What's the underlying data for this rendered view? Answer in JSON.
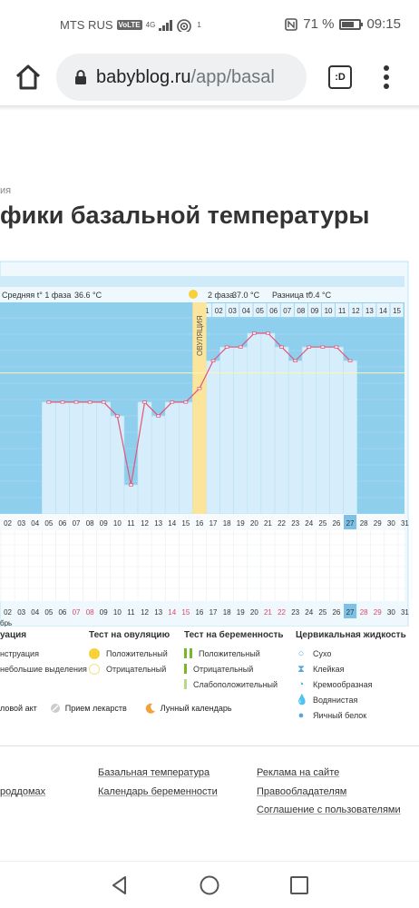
{
  "status_bar": {
    "carrier": "MTS RUS",
    "volte": "VoLTE",
    "network": "4G",
    "signal_sub": "1",
    "battery": "71 %",
    "battery_level": 0.71,
    "time": "09:15"
  },
  "browser": {
    "url_host": "babyblog.ru",
    "url_path": "/app/basal",
    "tab_label": ":D"
  },
  "page": {
    "breadcrumb": "ия",
    "title": "фики базальной температуры"
  },
  "chart_data": {
    "type": "line",
    "phase1_label": "Средняя t° 1 фаза",
    "phase1_value": "36.6 °С",
    "phase2_label": "2 фаза",
    "phase2_value": "37.0 °С",
    "diff_label": "Разница t°",
    "diff_value": "0.4 °С",
    "ovulation_label": "ОВУЛЯЦИЯ",
    "ovulation_day": "16",
    "phase2_days": [
      "01",
      "02",
      "03",
      "04",
      "05",
      "06",
      "07",
      "08",
      "09",
      "10",
      "11",
      "12",
      "13",
      "14",
      "15"
    ],
    "cycle_days": [
      "02",
      "03",
      "04",
      "05",
      "06",
      "07",
      "08",
      "09",
      "10",
      "11",
      "12",
      "13",
      "14",
      "15",
      "16",
      "17",
      "18",
      "19",
      "20",
      "21",
      "22",
      "23",
      "24",
      "25",
      "26",
      "27",
      "28",
      "29",
      "30",
      "31"
    ],
    "x": [
      5,
      6,
      7,
      8,
      9,
      10,
      11,
      12,
      13,
      14,
      15,
      16,
      17,
      18,
      19,
      20,
      21,
      22,
      23,
      24,
      25,
      26,
      27
    ],
    "y": [
      36.6,
      36.6,
      36.6,
      36.6,
      36.6,
      36.5,
      36.0,
      36.6,
      36.5,
      36.6,
      36.6,
      36.7,
      36.9,
      37.0,
      37.0,
      37.1,
      37.1,
      37.0,
      36.9,
      37.0,
      37.0,
      37.0,
      36.9
    ],
    "coverline": 36.7,
    "today": "27",
    "calendar_days": [
      "02",
      "03",
      "04",
      "05",
      "06",
      "07",
      "08",
      "09",
      "10",
      "11",
      "12",
      "13",
      "14",
      "15",
      "16",
      "17",
      "18",
      "19",
      "20",
      "21",
      "22",
      "23",
      "24",
      "25",
      "26",
      "27",
      "28",
      "29",
      "30",
      "31"
    ],
    "red_days": [
      "07",
      "08",
      "14",
      "15",
      "21",
      "22",
      "28",
      "29"
    ],
    "month_fragment": "брь"
  },
  "legend": {
    "col1_title": "уация",
    "col1_items": [
      "нструация",
      "небольшие выделения"
    ],
    "col2_title": "Тест на овуляцию",
    "col2_items": [
      "Положительный",
      "Отрицательный"
    ],
    "col3_title": "Тест на беременность",
    "col3_items": [
      "Положительный",
      "Отрицательный",
      "Слабоположительный"
    ],
    "col4_title": "Цервикальная жидкость",
    "col4_items": [
      "Сухо",
      "Клейкая",
      "Кремообразная",
      "Водянистая",
      "Яичный белок"
    ],
    "bottom_items": [
      "ловой акт",
      "Прием лекарств",
      "Лунный календарь"
    ]
  },
  "footer": {
    "left": [
      "роддомах"
    ],
    "middle": [
      "Базальная температура",
      "Календарь беременности"
    ],
    "right": [
      "Реклама на сайте",
      "Правообладателям",
      "Соглашение с пользователями"
    ]
  },
  "colors": {
    "chart_bg": "#8fcfee",
    "bar_fill": "#d6eefb",
    "line": "#e0567a",
    "ovulation": "#fbe59a",
    "today": "#7dc1e6"
  }
}
